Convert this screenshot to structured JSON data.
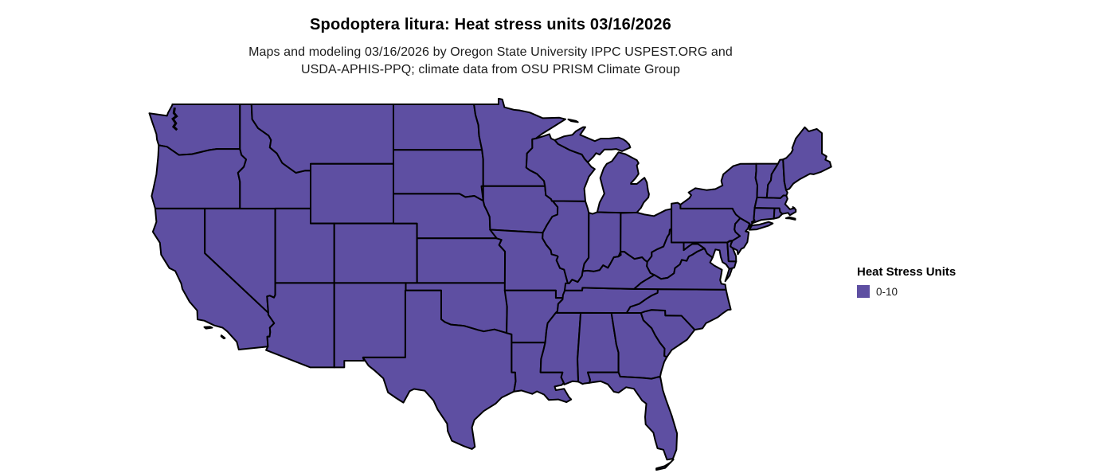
{
  "title": "Spodoptera litura: Heat stress units 03/16/2026",
  "subtitle": {
    "line1": "Maps and modeling 03/16/2026 by Oregon State University IPPC USPEST.ORG and",
    "line2": "USDA-APHIS-PPQ; climate data from OSU PRISM Climate Group"
  },
  "legend": {
    "title": "Heat Stress Units",
    "items": [
      {
        "label": "0-10",
        "color": "#5E4FA2"
      }
    ]
  },
  "map": {
    "region": "Contiguous United States",
    "fill": "#5E4FA2",
    "stroke": "#000000",
    "background": "#FFFFFF"
  },
  "chart_data": {
    "type": "choropleth",
    "title": "Spodoptera litura: Heat stress units 03/16/2026",
    "region": "Contiguous United States (48 states)",
    "legend_title": "Heat Stress Units",
    "classes": [
      {
        "label": "0-10",
        "color": "#5E4FA2"
      }
    ],
    "observation": "All mapped states fall in the single 0-10 heat stress units class"
  }
}
